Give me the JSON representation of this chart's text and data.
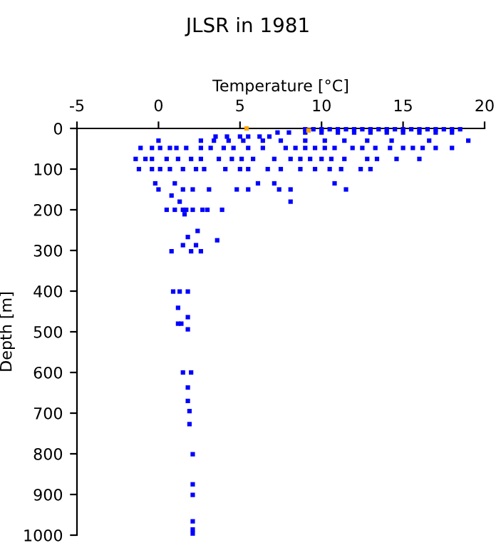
{
  "chart_data": {
    "type": "scatter",
    "title": "JLSR in 1981",
    "xlabel": "Temperature [°C]",
    "ylabel": "Depth [m]",
    "xlim": [
      -5,
      20
    ],
    "ylim": [
      1000,
      0
    ],
    "xticks": [
      -5,
      0,
      5,
      10,
      15,
      20
    ],
    "yticks": [
      0,
      100,
      200,
      300,
      400,
      500,
      600,
      700,
      800,
      900,
      1000
    ],
    "marker": "square",
    "grid": false,
    "legend": false,
    "series": [
      {
        "color": "#0000ff",
        "x": [
          9,
          9.5,
          10,
          10.5,
          11,
          11.5,
          12,
          12.5,
          13,
          13.5,
          14,
          14.5,
          15,
          15.5,
          16,
          16.5,
          17,
          17.5,
          18,
          18.5,
          7.3,
          8,
          9,
          10,
          11,
          12,
          13,
          14,
          15,
          16,
          17,
          18,
          3.5,
          4.2,
          5,
          5.5,
          6.2,
          6.8,
          0,
          2.6,
          3.4,
          4.3,
          5.2,
          6.4,
          7.5,
          9,
          10.2,
          11.4,
          12.8,
          14.3,
          16.6,
          19,
          -1.1,
          -0.4,
          0.1,
          0.7,
          1.1,
          1.7,
          2.6,
          3.2,
          4,
          4.6,
          5.5,
          6.4,
          7.8,
          8.4,
          9,
          9.6,
          10.2,
          10.8,
          11.9,
          12.5,
          13.3,
          14.2,
          15,
          15.6,
          16.2,
          17,
          18,
          -1.4,
          -0.8,
          -0.4,
          0.5,
          1.2,
          2,
          2.6,
          3.7,
          4.5,
          5.1,
          5.8,
          7.1,
          8.1,
          8.7,
          9.3,
          10,
          10.6,
          11.4,
          12.8,
          13.4,
          14.6,
          16,
          -1.2,
          -0.4,
          0.1,
          0.7,
          1.5,
          2.3,
          2.8,
          4.1,
          5,
          5.5,
          6.7,
          7.5,
          8.7,
          9.6,
          10.5,
          11.2,
          12.4,
          13,
          -0.2,
          0,
          1,
          1.5,
          2.1,
          3.1,
          4.8,
          5.5,
          6.1,
          7.1,
          7.4,
          8.1,
          10.8,
          11.5,
          0.8,
          1.3,
          8.1,
          0.5,
          1,
          1.5,
          1.7,
          2.1,
          2.7,
          3,
          3.9,
          1.6,
          2.4,
          3.6,
          1.8,
          1.5,
          2.3,
          0.8,
          2,
          2.6,
          0.9,
          1.3,
          1.8,
          1.2,
          1.8,
          1.2,
          1.4,
          1.8,
          1.5,
          2,
          1.8,
          1.8,
          1.9,
          1.9,
          2.1,
          2.1,
          2.1,
          2.1,
          2.1,
          2.1
        ],
        "values": [
          2,
          2,
          2,
          2,
          2,
          2,
          2,
          2,
          2,
          2,
          2,
          2,
          2,
          2,
          2,
          2,
          2,
          2,
          2,
          2,
          10,
          10,
          10,
          10,
          10,
          10,
          10,
          10,
          10,
          10,
          10,
          10,
          20,
          20,
          20,
          20,
          20,
          20,
          30,
          30,
          30,
          30,
          30,
          30,
          30,
          30,
          30,
          30,
          30,
          30,
          30,
          30,
          48,
          48,
          48,
          48,
          48,
          48,
          48,
          48,
          48,
          48,
          48,
          48,
          48,
          48,
          48,
          48,
          48,
          48,
          48,
          48,
          48,
          48,
          48,
          48,
          48,
          48,
          48,
          75,
          75,
          75,
          75,
          75,
          75,
          75,
          75,
          75,
          75,
          75,
          75,
          75,
          75,
          75,
          75,
          75,
          75,
          75,
          75,
          75,
          75,
          100,
          100,
          100,
          100,
          100,
          100,
          100,
          100,
          100,
          100,
          100,
          100,
          100,
          100,
          100,
          100,
          100,
          100,
          135,
          150,
          135,
          150,
          150,
          150,
          150,
          150,
          135,
          135,
          150,
          150,
          135,
          150,
          165,
          180,
          180,
          200,
          200,
          200,
          200,
          200,
          200,
          200,
          200,
          211,
          252,
          275,
          267,
          287,
          287,
          302,
          302,
          302,
          401,
          401,
          401,
          441,
          464,
          480,
          480,
          494,
          600,
          600,
          637,
          670,
          695,
          727,
          801,
          875,
          901,
          966,
          986,
          996
        ]
      },
      {
        "color": "#ffa500",
        "x": [
          5.4,
          9.2
        ],
        "values": [
          0,
          5
        ]
      }
    ]
  }
}
